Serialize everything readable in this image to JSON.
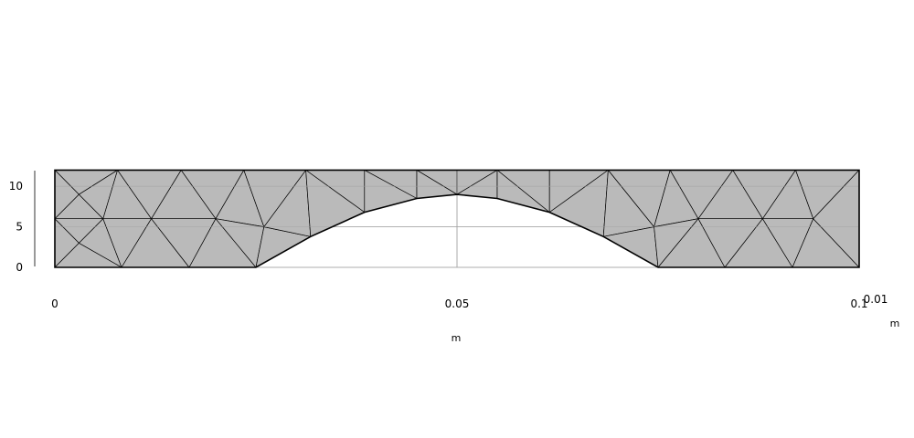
{
  "plot": {
    "x_axis": {
      "ticks": [
        {
          "value": 0,
          "label": "0"
        },
        {
          "value": 0.05,
          "label": "0.05"
        },
        {
          "value": 0.1,
          "label": "0.1"
        }
      ],
      "unit_label": "m",
      "range": [
        0,
        0.1
      ]
    },
    "y_axis": {
      "ticks": [
        {
          "value": 0,
          "label": "0"
        },
        {
          "value": 5,
          "label": "5"
        },
        {
          "value": 10,
          "label": "10"
        }
      ],
      "scale_factor_label": "0.01",
      "unit_label": "m",
      "range": [
        0,
        12
      ]
    },
    "colors": {
      "mesh_fill": "#bababa",
      "mesh_edge": "#000000",
      "grid": "#a0a0a0",
      "axis": "#000000"
    }
  },
  "mesh": {
    "outline": [
      [
        0,
        0
      ],
      [
        0.025,
        0
      ],
      [
        0.0318,
        3.8
      ],
      [
        0.0385,
        6.8
      ],
      [
        0.045,
        8.5
      ],
      [
        0.05,
        9
      ],
      [
        0.055,
        8.5
      ],
      [
        0.0615,
        6.8
      ],
      [
        0.0682,
        3.8
      ],
      [
        0.075,
        0
      ],
      [
        0.1,
        0
      ],
      [
        0.1,
        12
      ],
      [
        0,
        12
      ]
    ],
    "nodes": [
      [
        0,
        0
      ],
      [
        0.0083,
        0
      ],
      [
        0.0167,
        0
      ],
      [
        0.025,
        0
      ],
      [
        0.0318,
        3.8
      ],
      [
        0.0385,
        6.8
      ],
      [
        0.045,
        8.5
      ],
      [
        0.05,
        9
      ],
      [
        0.055,
        8.5
      ],
      [
        0.0615,
        6.8
      ],
      [
        0.0682,
        3.8
      ],
      [
        0.075,
        0
      ],
      [
        0.0833,
        0
      ],
      [
        0.0917,
        0
      ],
      [
        0.1,
        0
      ],
      [
        0.1,
        12
      ],
      [
        0.0921,
        12
      ],
      [
        0.0843,
        12
      ],
      [
        0.0765,
        12
      ],
      [
        0.0688,
        12
      ],
      [
        0.0615,
        12
      ],
      [
        0.055,
        12
      ],
      [
        0.05,
        12
      ],
      [
        0.045,
        12
      ],
      [
        0.0385,
        12
      ],
      [
        0.0312,
        12
      ],
      [
        0.0235,
        12
      ],
      [
        0.0157,
        12
      ],
      [
        0.0078,
        12
      ],
      [
        0,
        12
      ],
      [
        0,
        6
      ],
      [
        0.003,
        3
      ],
      [
        0.003,
        9
      ],
      [
        0.006,
        6
      ],
      [
        0.012,
        6
      ],
      [
        0.02,
        6
      ],
      [
        0.026,
        5
      ],
      [
        0.0745,
        5
      ],
      [
        0.08,
        6
      ],
      [
        0.088,
        6
      ],
      [
        0.0943,
        6
      ]
    ],
    "triangles": [
      [
        29,
        28,
        32
      ],
      [
        29,
        32,
        30
      ],
      [
        32,
        33,
        30
      ],
      [
        32,
        28,
        33
      ],
      [
        28,
        34,
        33
      ],
      [
        28,
        27,
        34
      ],
      [
        27,
        35,
        34
      ],
      [
        27,
        26,
        35
      ],
      [
        26,
        36,
        35
      ],
      [
        30,
        33,
        31
      ],
      [
        30,
        31,
        0
      ],
      [
        31,
        33,
        1
      ],
      [
        31,
        1,
        0
      ],
      [
        33,
        34,
        1
      ],
      [
        34,
        2,
        1
      ],
      [
        34,
        35,
        2
      ],
      [
        35,
        3,
        2
      ],
      [
        35,
        36,
        3
      ],
      [
        36,
        4,
        3
      ],
      [
        36,
        25,
        4
      ],
      [
        26,
        25,
        36
      ],
      [
        25,
        24,
        5
      ],
      [
        25,
        5,
        4
      ],
      [
        24,
        23,
        6
      ],
      [
        24,
        6,
        5
      ],
      [
        23,
        22,
        7
      ],
      [
        23,
        7,
        6
      ],
      [
        22,
        21,
        7
      ],
      [
        21,
        8,
        7
      ],
      [
        21,
        20,
        9
      ],
      [
        21,
        9,
        8
      ],
      [
        20,
        19,
        9
      ],
      [
        19,
        10,
        9
      ],
      [
        19,
        37,
        10
      ],
      [
        10,
        37,
        11
      ],
      [
        19,
        18,
        37
      ],
      [
        18,
        38,
        37
      ],
      [
        37,
        38,
        11
      ],
      [
        38,
        12,
        11
      ],
      [
        18,
        17,
        38
      ],
      [
        17,
        39,
        38
      ],
      [
        38,
        39,
        12
      ],
      [
        39,
        13,
        12
      ],
      [
        17,
        16,
        39
      ],
      [
        16,
        40,
        39
      ],
      [
        39,
        40,
        13
      ],
      [
        40,
        14,
        13
      ],
      [
        16,
        15,
        40
      ],
      [
        15,
        14,
        40
      ]
    ]
  }
}
